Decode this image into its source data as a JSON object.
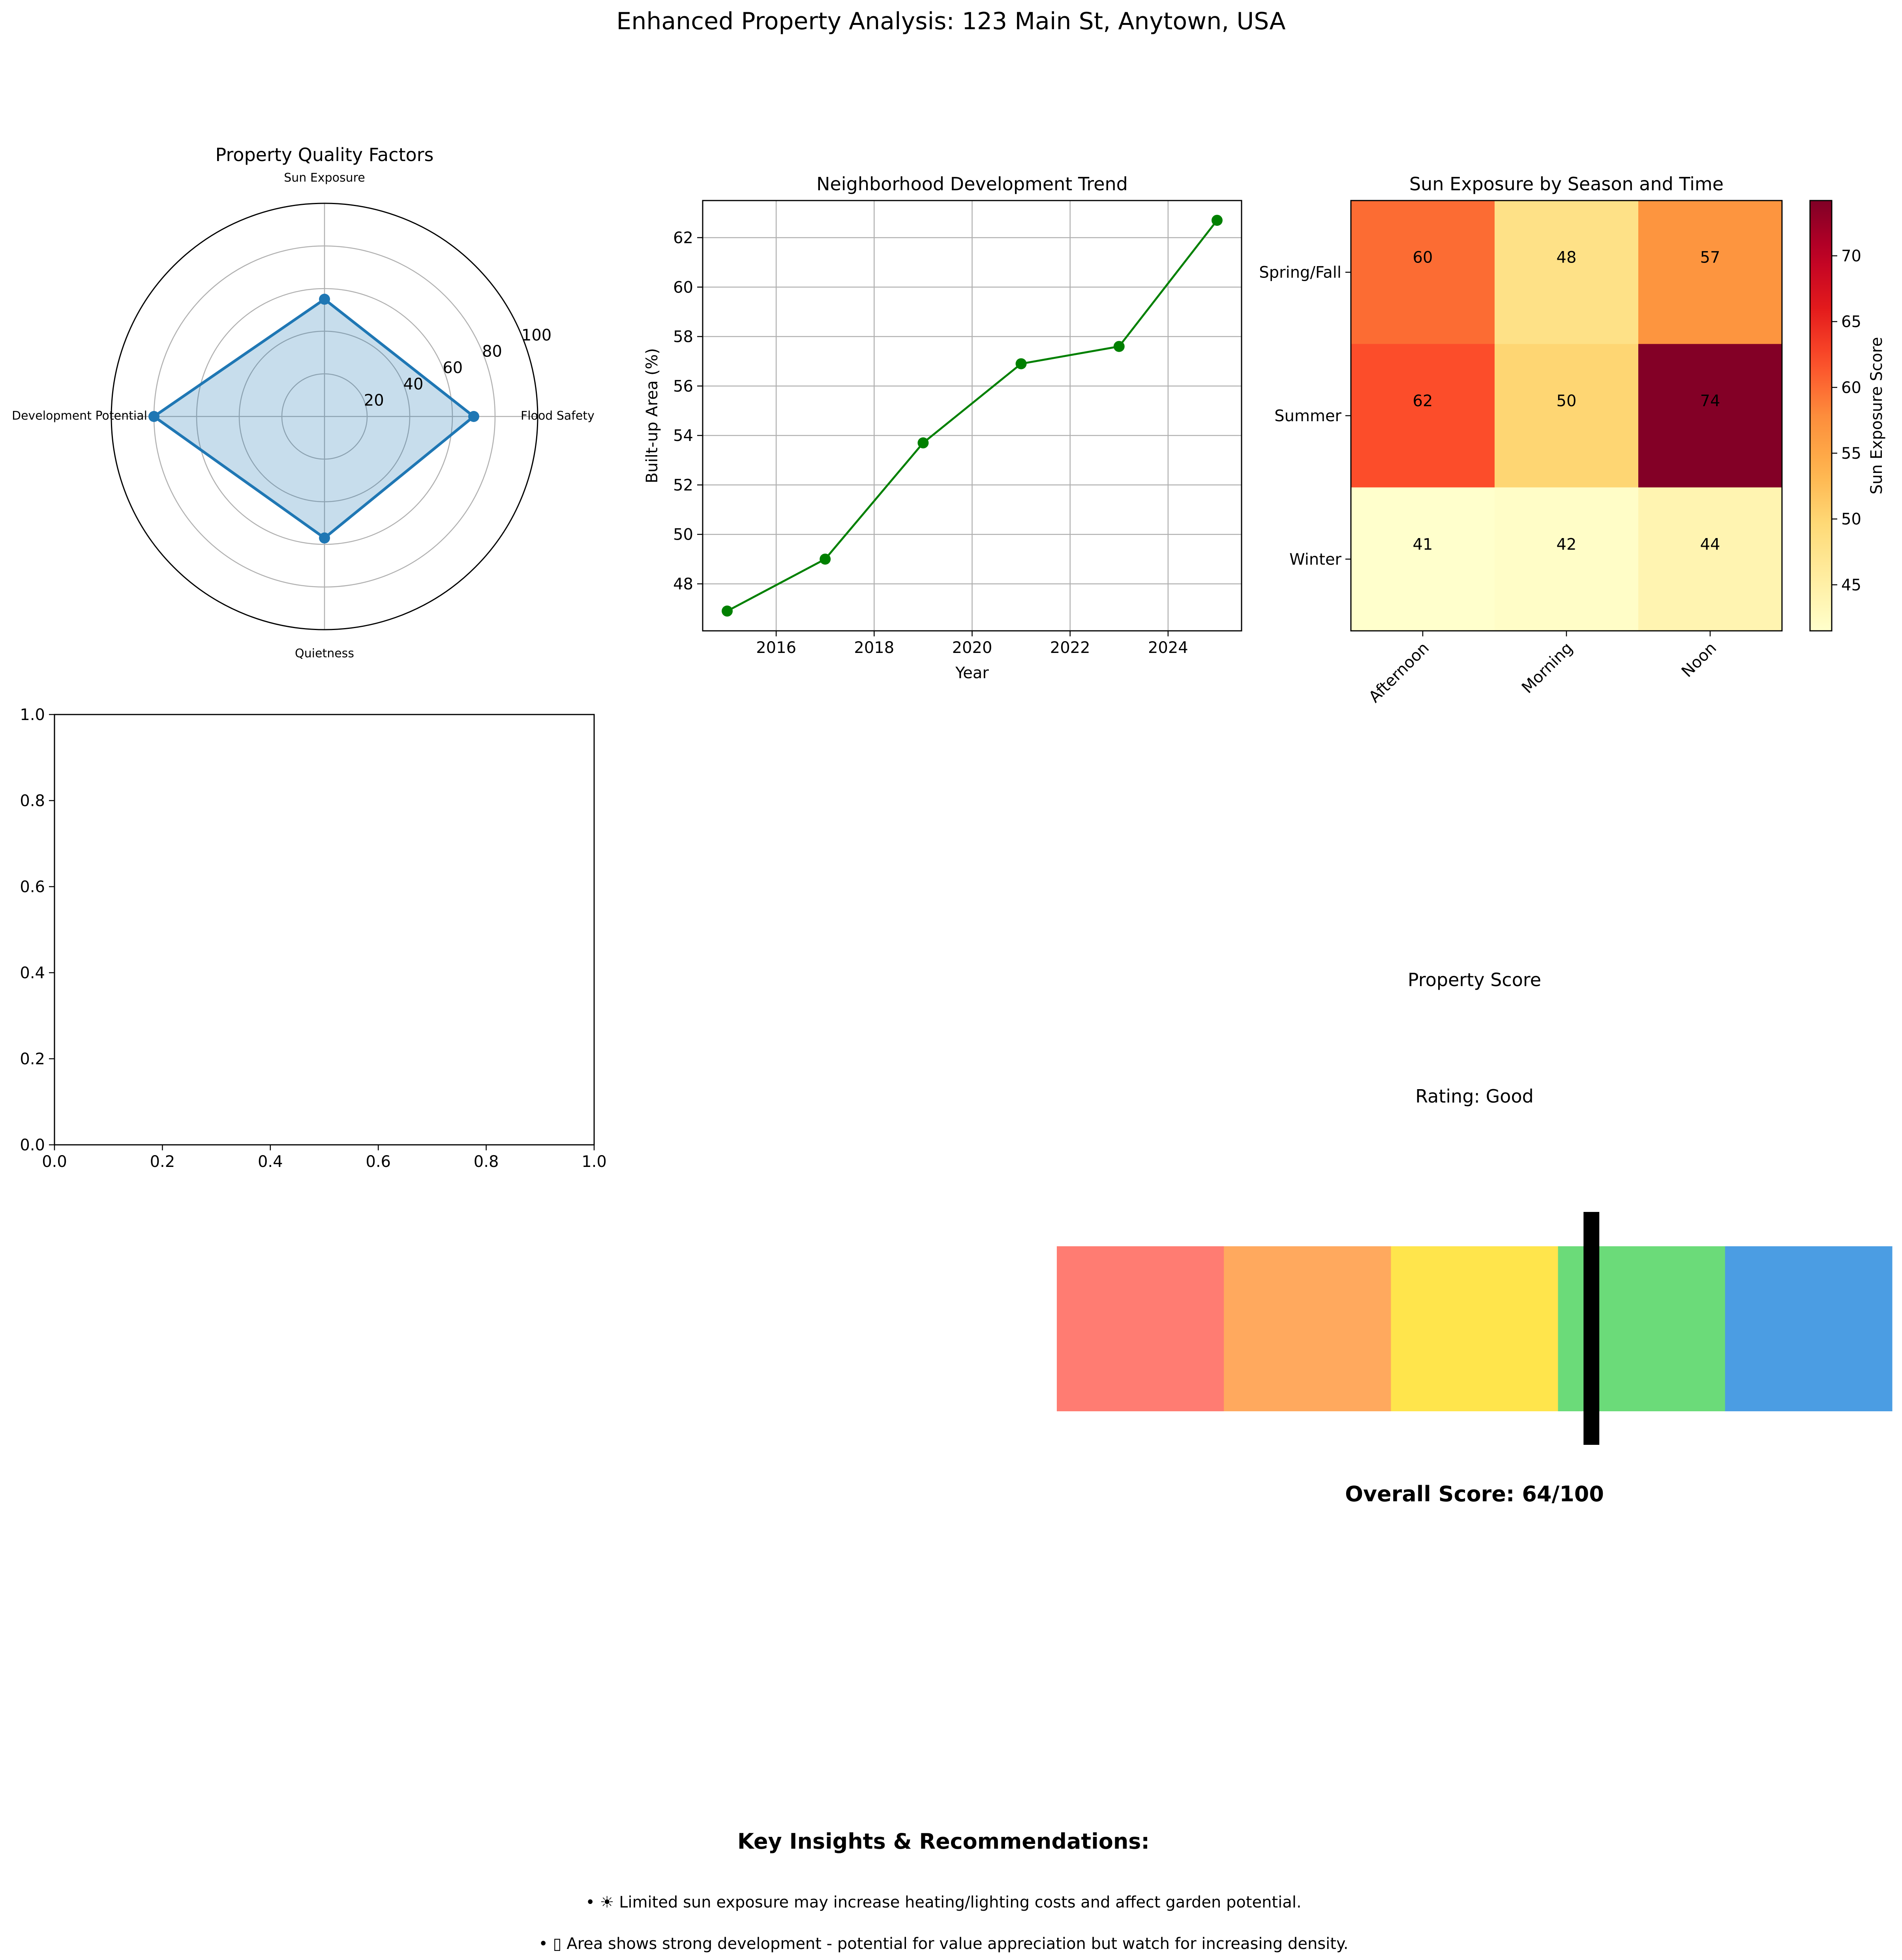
{
  "figure": {
    "title": "Enhanced Property Analysis: 123 Main St, Anytown, USA"
  },
  "chart_data": [
    {
      "type": "radar",
      "title": "Property Quality Factors",
      "categories": [
        "Flood Safety",
        "Sun Exposure",
        "Development Potential",
        "Quietness"
      ],
      "values": [
        70,
        55,
        80,
        57
      ],
      "rmax": 100,
      "rticks": [
        20,
        40,
        60,
        80,
        100
      ],
      "colors": {
        "line": "#1f77b4",
        "fill": "#1f77b4"
      }
    },
    {
      "type": "line",
      "title": "Neighborhood Development Trend",
      "xlabel": "Year",
      "ylabel": "Built-up Area (%)",
      "x": [
        2015,
        2017,
        2019,
        2021,
        2023,
        2025
      ],
      "y": [
        46.9,
        49.0,
        53.7,
        56.9,
        57.6,
        62.7
      ],
      "xlim": [
        2014.5,
        2025.5
      ],
      "ylim": [
        46.1,
        63.5
      ],
      "xticks": [
        2016,
        2018,
        2020,
        2022,
        2024
      ],
      "yticks": [
        48,
        50,
        52,
        54,
        56,
        58,
        60,
        62
      ],
      "grid": true,
      "color": "#008000"
    },
    {
      "type": "heatmap",
      "title": "Sun Exposure by Season and Time",
      "rows": [
        "Spring/Fall",
        "Summer",
        "Winter"
      ],
      "columns": [
        "Afternoon",
        "Morning",
        "Noon"
      ],
      "values": [
        [
          60,
          48,
          57
        ],
        [
          62,
          50,
          74
        ],
        [
          41,
          42,
          44
        ]
      ],
      "colorbar": {
        "label": "Sun Exposure Score",
        "ticks": [
          45,
          50,
          55,
          60,
          65,
          70
        ],
        "range": [
          41.5,
          74.2
        ]
      },
      "colormap": "YlOrRd"
    },
    {
      "type": "empty-axes",
      "xlim": [
        0,
        1
      ],
      "ylim": [
        0,
        1
      ],
      "xticks": [
        "0.0",
        "0.2",
        "0.4",
        "0.6",
        "0.8",
        "1.0"
      ],
      "yticks": [
        "0.0",
        "0.2",
        "0.4",
        "0.6",
        "0.8",
        "1.0"
      ]
    },
    {
      "type": "gauge",
      "title": "Property Score",
      "rating": "Rating: Good",
      "value": 64,
      "max": 100,
      "score_label": "Overall Score: 64/100",
      "bands": [
        {
          "from": 0,
          "to": 20,
          "color": "#ff7c72"
        },
        {
          "from": 20,
          "to": 40,
          "color": "#ffa95e"
        },
        {
          "from": 40,
          "to": 60,
          "color": "#ffe54c"
        },
        {
          "from": 60,
          "to": 80,
          "color": "#6bdb79"
        },
        {
          "from": 80,
          "to": 100,
          "color": "#4b9de3"
        }
      ]
    }
  ],
  "insights": {
    "title": "Key Insights & Recommendations:",
    "items": [
      "• ☀ Limited sun exposure may increase heating/lighting costs and affect garden potential.",
      "• ▯ Area shows strong development - potential for value appreciation but watch for increasing density."
    ]
  }
}
